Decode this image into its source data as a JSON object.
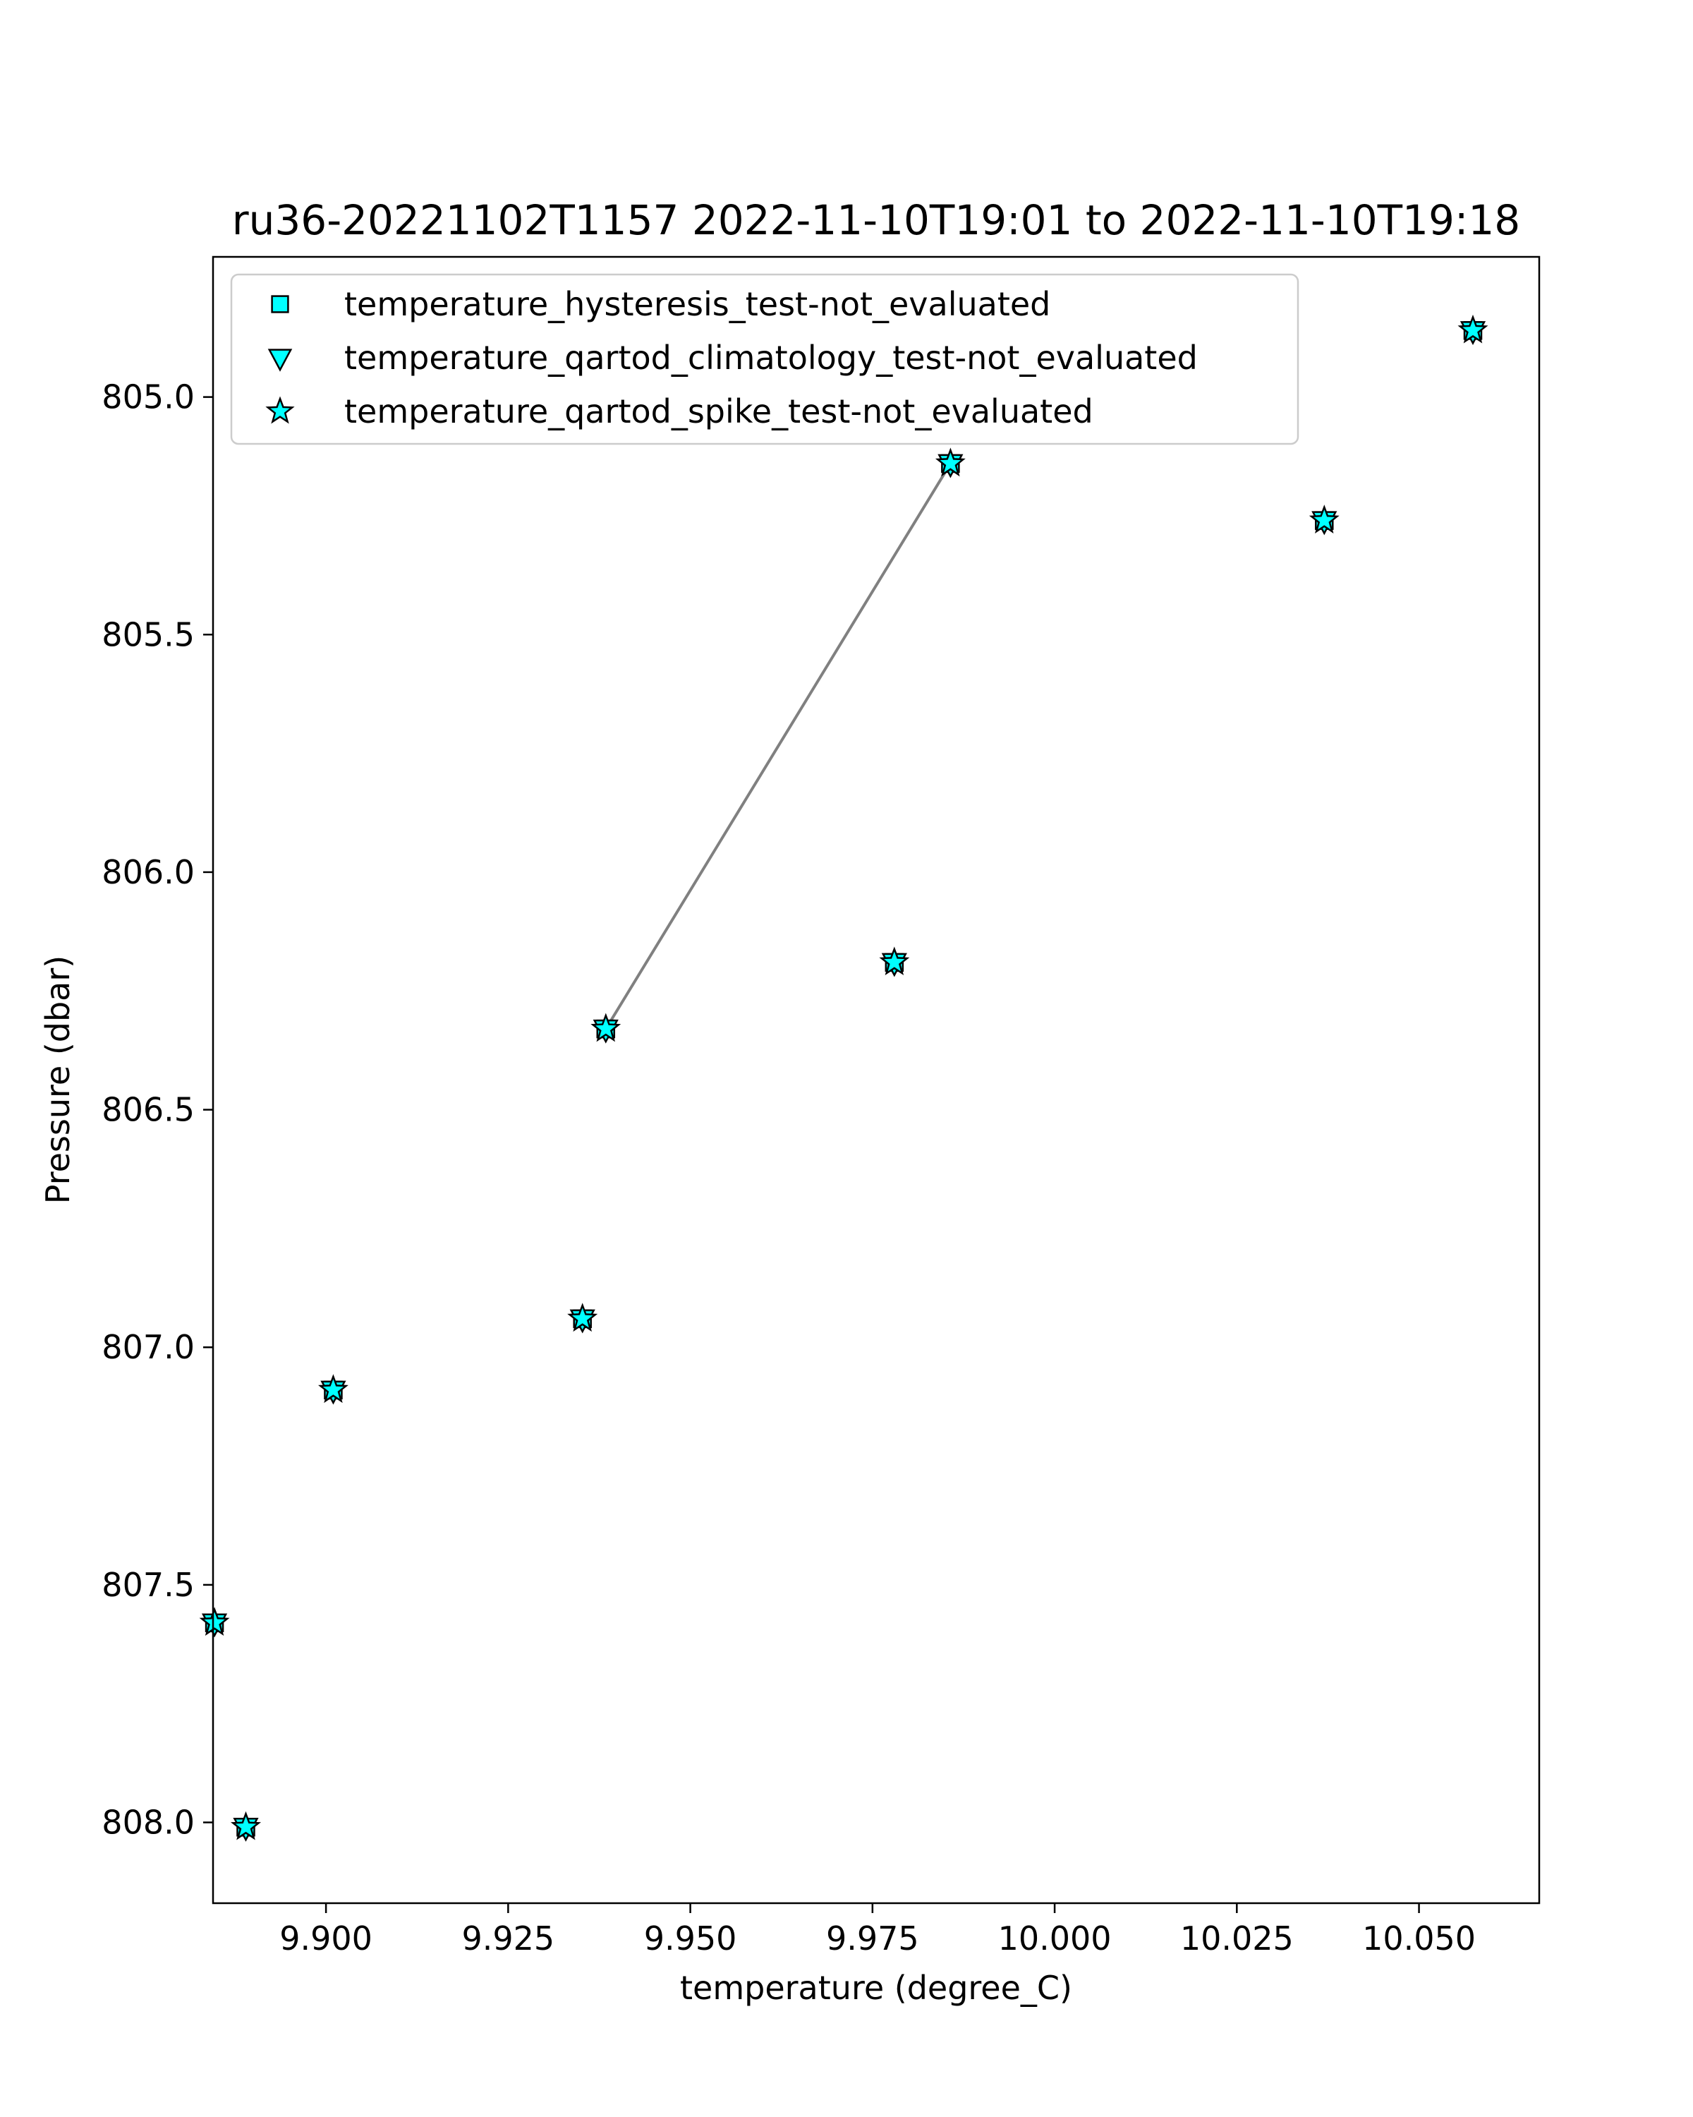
{
  "chart_data": {
    "type": "scatter",
    "title": "ru36-20221102T1157 2022-11-10T19:01 to 2022-11-10T19:18",
    "xlabel": "temperature (degree_C)",
    "ylabel": "Pressure (dbar)",
    "xlim": [
      9.8845,
      10.0665
    ],
    "ylim": [
      808.17,
      804.705
    ],
    "y_inverted": true,
    "grid": false,
    "legend_position": "upper-left",
    "xticks": [
      9.9,
      9.925,
      9.95,
      9.975,
      10.0,
      10.025,
      10.05
    ],
    "xtick_labels": [
      "9.900",
      "9.925",
      "9.950",
      "9.975",
      "10.000",
      "10.025",
      "10.050"
    ],
    "yticks": [
      805.0,
      805.5,
      806.0,
      806.5,
      807.0,
      807.5,
      808.0
    ],
    "ytick_labels": [
      "805.0",
      "805.5",
      "806.0",
      "806.5",
      "807.0",
      "807.5",
      "808.0"
    ],
    "profile_line": {
      "color": "#808080",
      "x": [
        9.9384,
        9.9857
      ],
      "y": [
        806.33,
        805.14
      ]
    },
    "series": [
      {
        "name": "temperature_hysteresis_test-not_evaluated",
        "marker": "square",
        "color": "#00ffff",
        "x": [
          10.0574,
          10.037,
          9.9857,
          9.978,
          9.9384,
          9.9352,
          9.901,
          9.8847,
          9.889
        ],
        "y": [
          804.86,
          805.26,
          805.14,
          806.19,
          806.33,
          806.94,
          807.09,
          807.58,
          808.01
        ]
      },
      {
        "name": "temperature_qartod_climatology_test-not_evaluated",
        "marker": "triangle-down",
        "color": "#00ffff",
        "x": [
          10.0574,
          10.037,
          9.9857,
          9.978,
          9.9384,
          9.9352,
          9.901,
          9.8847,
          9.889
        ],
        "y": [
          804.86,
          805.26,
          805.14,
          806.19,
          806.33,
          806.94,
          807.09,
          807.58,
          808.01
        ]
      },
      {
        "name": "temperature_qartod_spike_test-not_evaluated",
        "marker": "star",
        "color": "#00ffff",
        "x": [
          10.0574,
          10.037,
          9.9857,
          9.978,
          9.9384,
          9.9352,
          9.901,
          9.8847,
          9.889
        ],
        "y": [
          804.86,
          805.26,
          805.14,
          806.19,
          806.33,
          806.94,
          807.09,
          807.58,
          808.01
        ]
      }
    ]
  }
}
